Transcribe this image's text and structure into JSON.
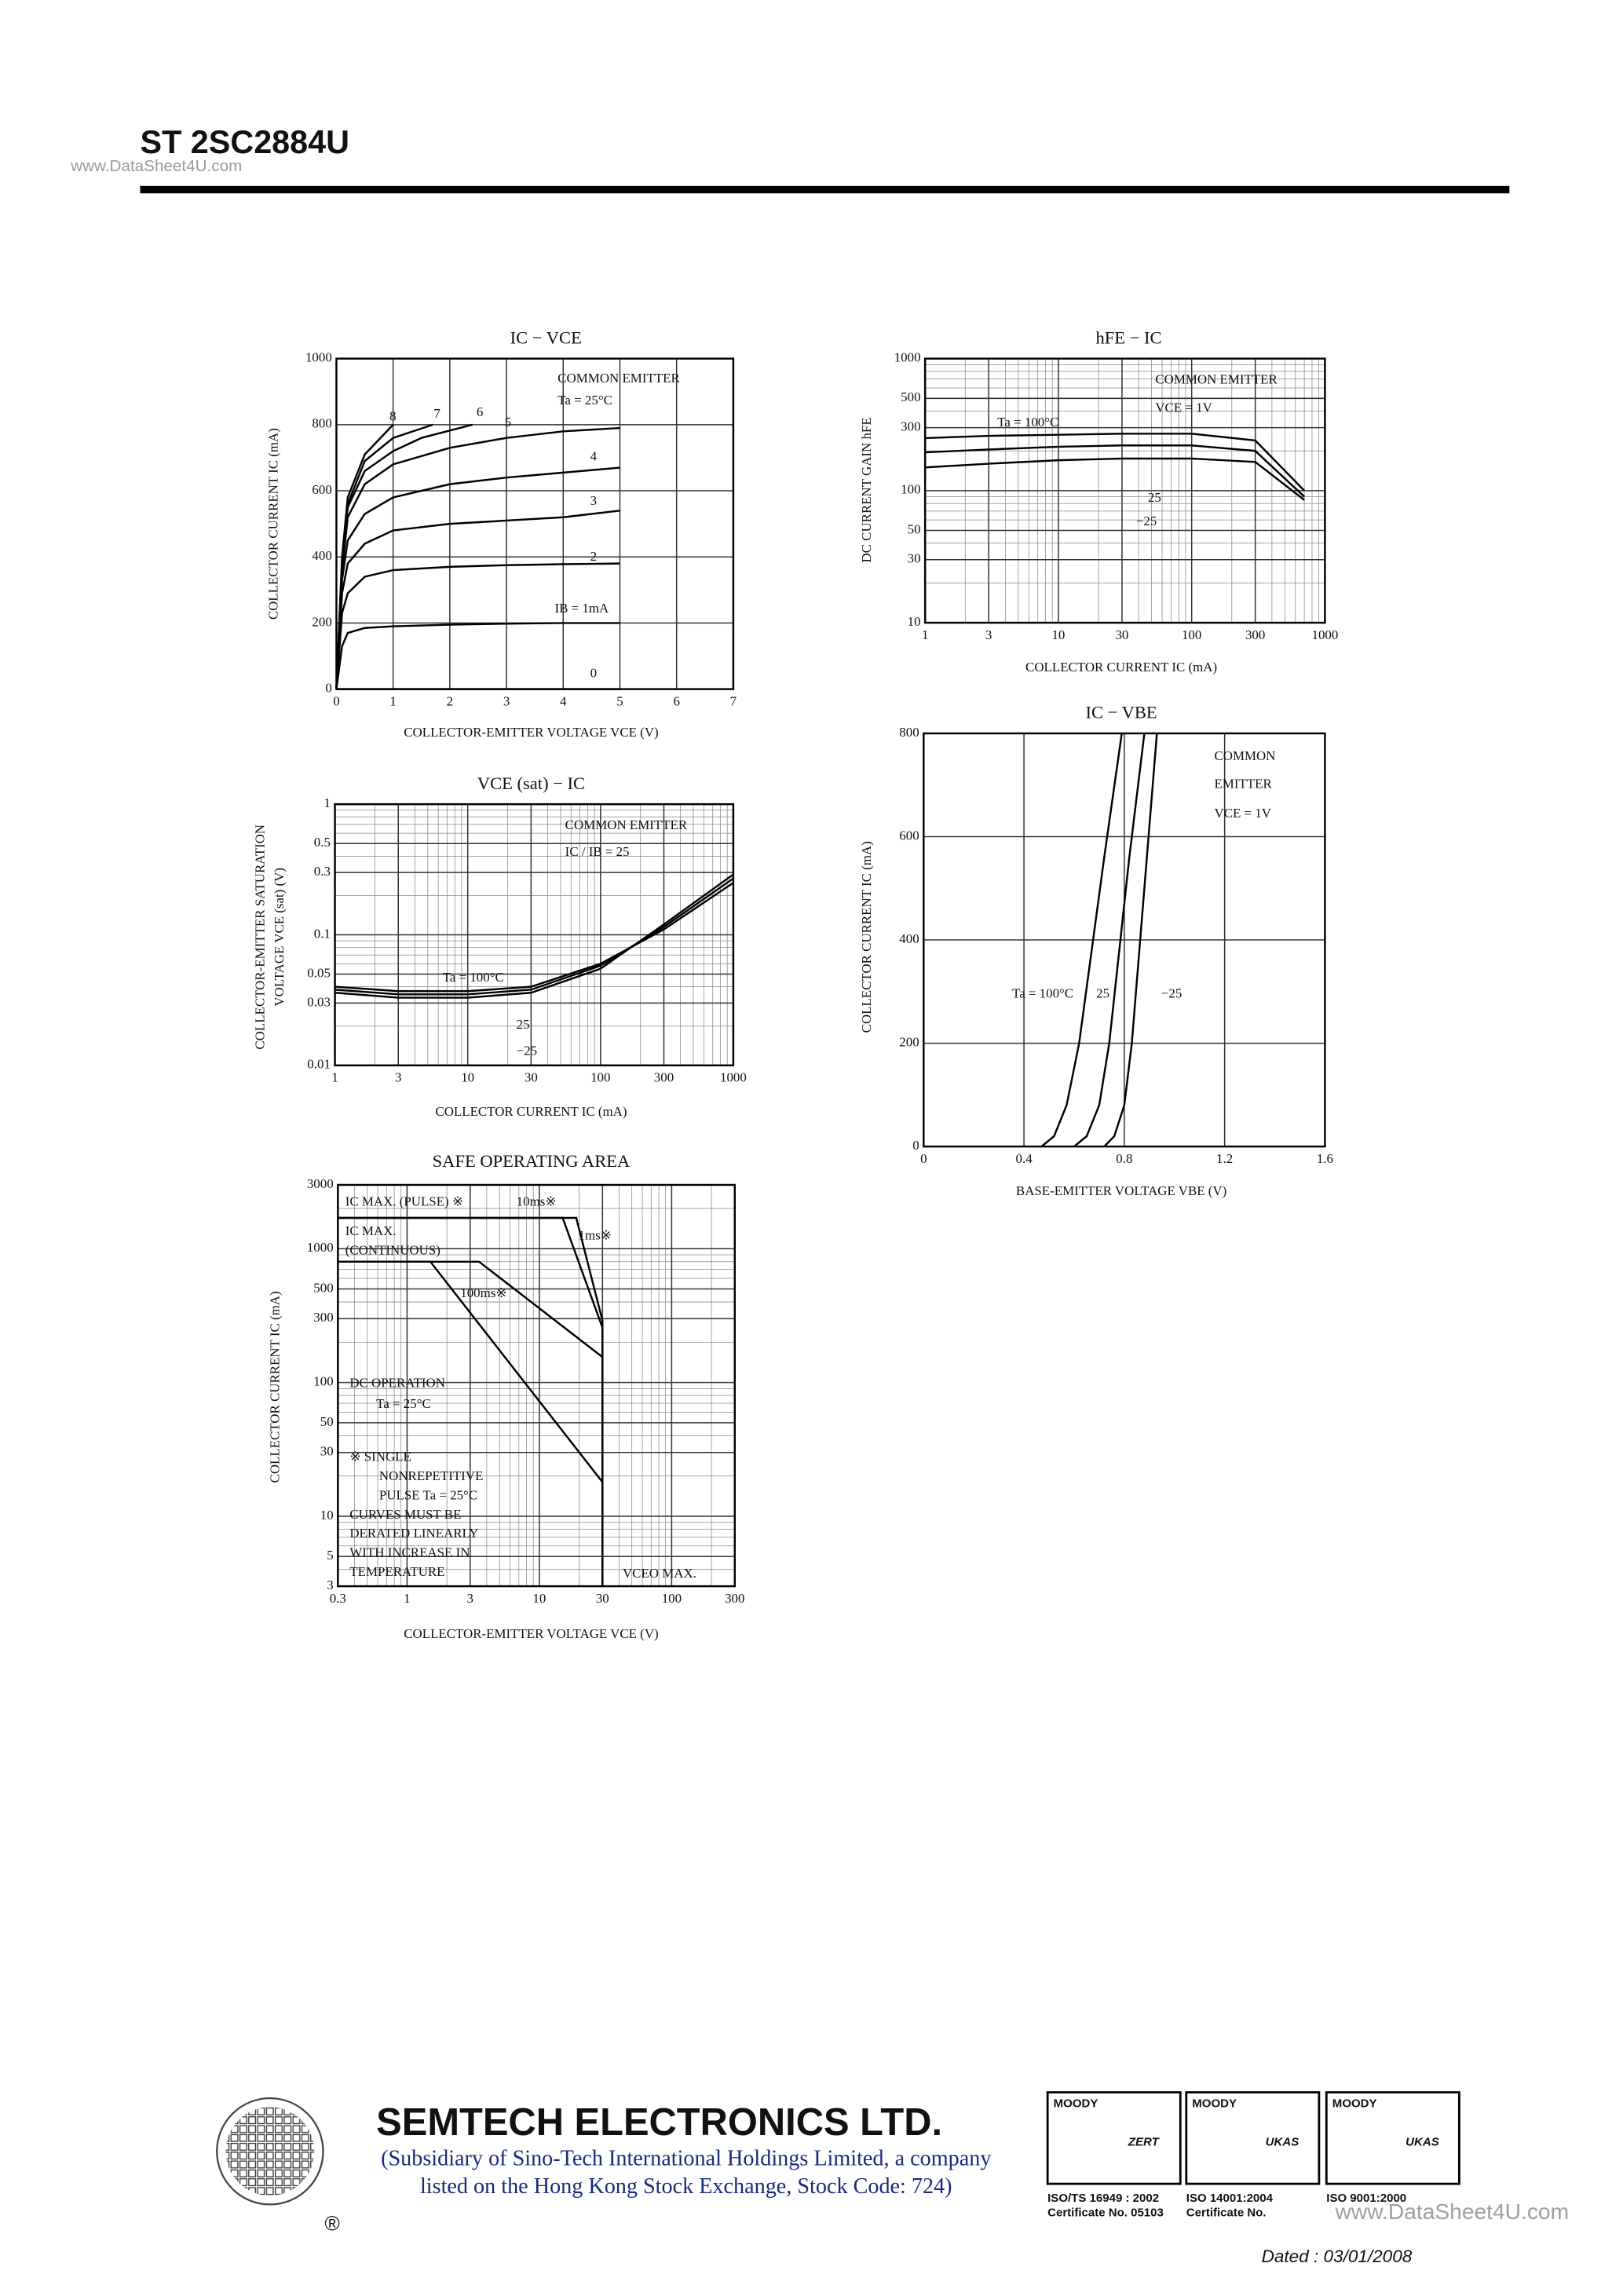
{
  "header": {
    "title": "ST 2SC2884U",
    "watermark": "www.DataSheet4U.com"
  },
  "chart_data": [
    {
      "type": "line",
      "title": "IC − VCE",
      "xlabel": "COLLECTOR-EMITTER VOLTAGE   VCE   (V)",
      "ylabel": [
        "COLLECTOR CURRENT   IC   (mA)"
      ],
      "xlim": [
        0,
        7
      ],
      "ylim": [
        0,
        1000
      ],
      "xticks": [
        0,
        1,
        2,
        3,
        4,
        5,
        6,
        7
      ],
      "yticks": [
        0,
        200,
        400,
        600,
        800,
        1000
      ],
      "grid": true,
      "annotations": [
        "COMMON EMITTER",
        "Ta = 25°C"
      ],
      "series": [
        {
          "name": "0",
          "color": "#000000",
          "x": [
            0,
            5
          ],
          "values": [
            0,
            0
          ]
        },
        {
          "name": "IB = 1mA",
          "color": "#000000",
          "x": [
            0,
            0.1,
            0.2,
            0.5,
            1,
            2,
            3,
            4,
            5
          ],
          "values": [
            0,
            130,
            170,
            185,
            190,
            195,
            198,
            200,
            200
          ]
        },
        {
          "name": "2",
          "color": "#000000",
          "x": [
            0,
            0.1,
            0.2,
            0.5,
            1,
            2,
            3,
            4,
            5
          ],
          "values": [
            0,
            230,
            290,
            340,
            360,
            370,
            375,
            378,
            380
          ]
        },
        {
          "name": "3",
          "color": "#000000",
          "x": [
            0,
            0.1,
            0.2,
            0.5,
            1,
            2,
            3,
            4,
            5
          ],
          "values": [
            0,
            290,
            380,
            440,
            480,
            500,
            510,
            520,
            540
          ]
        },
        {
          "name": "4",
          "color": "#000000",
          "x": [
            0,
            0.1,
            0.2,
            0.5,
            1,
            2,
            3,
            4,
            5
          ],
          "values": [
            0,
            330,
            450,
            530,
            580,
            620,
            640,
            655,
            670
          ]
        },
        {
          "name": "5",
          "color": "#000000",
          "x": [
            0,
            0.1,
            0.2,
            0.5,
            1,
            2,
            3,
            4,
            5
          ],
          "values": [
            0,
            360,
            520,
            620,
            680,
            730,
            760,
            780,
            790
          ]
        },
        {
          "name": "6",
          "color": "#000000",
          "x": [
            0,
            0.1,
            0.2,
            0.5,
            1,
            1.5,
            2.4
          ],
          "values": [
            0,
            380,
            550,
            660,
            720,
            760,
            800
          ]
        },
        {
          "name": "7",
          "color": "#000000",
          "x": [
            0,
            0.1,
            0.2,
            0.5,
            1,
            1.7
          ],
          "values": [
            0,
            390,
            560,
            690,
            760,
            800
          ]
        },
        {
          "name": "8",
          "color": "#000000",
          "x": [
            0,
            0.1,
            0.2,
            0.5,
            1
          ],
          "values": [
            0,
            400,
            580,
            710,
            800
          ]
        }
      ]
    },
    {
      "type": "line",
      "title": "hFE − IC",
      "xlabel": "COLLECTOR CURRENT   IC   (mA)",
      "ylabel": [
        "DC CURRENT GAIN   hFE"
      ],
      "xlim": [
        1,
        1000
      ],
      "ylim": [
        10,
        1000
      ],
      "xscale": "log",
      "yscale": "log",
      "xticks": [
        1,
        3,
        10,
        30,
        100,
        300,
        1000
      ],
      "yticks": [
        10,
        30,
        50,
        100,
        300,
        500,
        1000
      ],
      "grid": true,
      "annotations": [
        "COMMON EMITTER",
        "VCE = 1V"
      ],
      "series": [
        {
          "name": "Ta = 100°C",
          "color": "#000000",
          "x": [
            1,
            3,
            10,
            30,
            100,
            300,
            700
          ],
          "values": [
            250,
            260,
            265,
            270,
            270,
            240,
            100
          ]
        },
        {
          "name": "25",
          "color": "#000000",
          "x": [
            1,
            3,
            10,
            30,
            100,
            300,
            700
          ],
          "values": [
            195,
            205,
            215,
            220,
            220,
            200,
            90
          ]
        },
        {
          "name": "−25",
          "color": "#000000",
          "x": [
            1,
            3,
            10,
            30,
            100,
            300,
            700
          ],
          "values": [
            150,
            160,
            170,
            175,
            175,
            165,
            85
          ]
        }
      ]
    },
    {
      "type": "line",
      "title": "VCE (sat) − IC",
      "xlabel": "COLLECTOR CURRENT   IC   (mA)",
      "ylabel": [
        "COLLECTOR-EMITTER SATURATION",
        "VOLTAGE   VCE (sat)   (V)"
      ],
      "xlim": [
        1,
        1000
      ],
      "ylim": [
        0.01,
        1
      ],
      "xscale": "log",
      "yscale": "log",
      "xticks": [
        1,
        3,
        10,
        30,
        100,
        300,
        1000
      ],
      "yticks": [
        0.01,
        0.03,
        0.05,
        0.1,
        0.3,
        0.5,
        1
      ],
      "grid": true,
      "annotations": [
        "COMMON EMITTER",
        "IC / IB = 25"
      ],
      "series": [
        {
          "name": "Ta = 100°C",
          "color": "#000000",
          "x": [
            1,
            3,
            10,
            30,
            100,
            300,
            1000
          ],
          "values": [
            0.04,
            0.037,
            0.037,
            0.04,
            0.06,
            0.11,
            0.25
          ]
        },
        {
          "name": "25",
          "color": "#000000",
          "x": [
            1,
            3,
            10,
            30,
            100,
            300,
            1000
          ],
          "values": [
            0.038,
            0.035,
            0.035,
            0.038,
            0.058,
            0.115,
            0.27
          ]
        },
        {
          "name": "−25",
          "color": "#000000",
          "x": [
            1,
            3,
            10,
            30,
            100,
            300,
            1000
          ],
          "values": [
            0.036,
            0.033,
            0.033,
            0.036,
            0.055,
            0.12,
            0.29
          ]
        }
      ]
    },
    {
      "type": "line",
      "title": "IC − VBE",
      "xlabel": "BASE-EMITTER VOLTAGE   VBE   (V)",
      "ylabel": [
        "COLLECTOR CURRENT   IC   (mA)"
      ],
      "xlim": [
        0,
        1.6
      ],
      "ylim": [
        0,
        800
      ],
      "xticks": [
        0,
        0.4,
        0.8,
        1.2,
        1.6
      ],
      "yticks": [
        0,
        200,
        400,
        600,
        800
      ],
      "grid": true,
      "annotations": [
        "COMMON",
        "EMITTER",
        "VCE = 1V"
      ],
      "series": [
        {
          "name": "Ta = 100°C",
          "color": "#000000",
          "x": [
            0.47,
            0.52,
            0.57,
            0.62,
            0.67,
            0.72,
            0.79
          ],
          "values": [
            0,
            20,
            80,
            200,
            380,
            560,
            800
          ]
        },
        {
          "name": "25",
          "color": "#000000",
          "x": [
            0.6,
            0.65,
            0.7,
            0.74,
            0.78,
            0.82,
            0.88
          ],
          "values": [
            0,
            20,
            80,
            200,
            380,
            560,
            800
          ]
        },
        {
          "name": "−25",
          "color": "#000000",
          "x": [
            0.72,
            0.76,
            0.8,
            0.83,
            0.86,
            0.89,
            0.93
          ],
          "values": [
            0,
            20,
            80,
            200,
            380,
            560,
            800
          ]
        }
      ]
    },
    {
      "type": "line",
      "title": "SAFE OPERATING AREA",
      "xlabel": "COLLECTOR-EMITTER VOLTAGE   VCE   (V)",
      "ylabel": [
        "COLLECTOR CURRENT   IC   (mA)"
      ],
      "xlim": [
        0.3,
        300
      ],
      "ylim": [
        3,
        3000
      ],
      "xscale": "log",
      "yscale": "log",
      "xticks": [
        0.3,
        1,
        3,
        10,
        30,
        100,
        300
      ],
      "yticks": [
        3,
        5,
        10,
        30,
        50,
        100,
        300,
        500,
        1000,
        3000
      ],
      "grid": true,
      "annotations": [
        "IC MAX. (PULSE) ※",
        "IC MAX.",
        "(CONTINUOUS)",
        "Ta = 25°C",
        "VCEO MAX.",
        "※  SINGLE",
        "NONREPETITIVE",
        "PULSE  Ta = 25°C",
        "CURVES MUST BE",
        "DERATED LINEARLY",
        "WITH INCREASE IN",
        "TEMPERATURE"
      ],
      "series": [
        {
          "name": "10ms※",
          "color": "#000000",
          "x": [
            0.3,
            15,
            30,
            30
          ],
          "values": [
            1700,
            1700,
            257,
            3
          ]
        },
        {
          "name": "1ms※",
          "color": "#000000",
          "x": [
            0.3,
            19,
            30,
            30
          ],
          "values": [
            1700,
            1700,
            290,
            3
          ]
        },
        {
          "name": "100ms※",
          "color": "#000000",
          "x": [
            0.3,
            3.5,
            30,
            30
          ],
          "values": [
            800,
            800,
            155,
            3
          ]
        },
        {
          "name": "DC OPERATION",
          "color": "#000000",
          "x": [
            0.3,
            1.5,
            30,
            30
          ],
          "values": [
            800,
            800,
            18,
            3
          ]
        }
      ]
    }
  ],
  "footer": {
    "company": "SEMTECH ELECTRONICS LTD.",
    "subsidiary": [
      "(Subsidiary of Sino-Tech International Holdings Limited, a company",
      "listed on the Hong Kong Stock Exchange, Stock Code: 724)"
    ],
    "registered": "®",
    "certs": [
      {
        "mark": "MOODY",
        "badge": "ZERT",
        "caption": [
          "ISO/TS 16949 : 2002",
          "Certificate No. 05103"
        ]
      },
      {
        "mark": "MOODY",
        "badge": "UKAS",
        "caption": [
          "ISO 14001:2004",
          "Certificate No."
        ]
      },
      {
        "mark": "MOODY",
        "badge": "UKAS",
        "caption": [
          "ISO 9001:2000"
        ]
      }
    ],
    "watermark": "www.DataSheet4U.com",
    "dated": "Dated : 03/01/2008"
  }
}
